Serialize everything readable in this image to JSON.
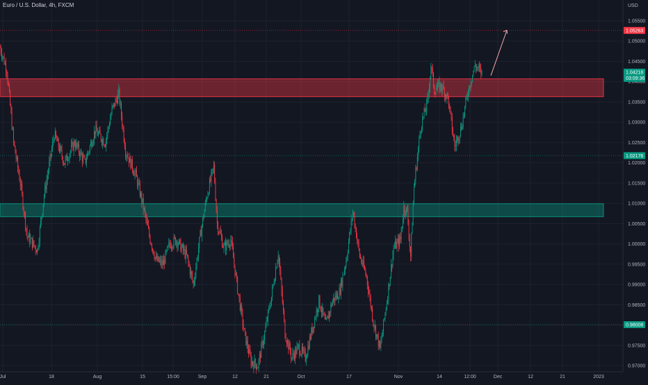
{
  "header": {
    "symbol_title": "Euro / U.S. Dollar, 4h, FXCM",
    "currency": "USD"
  },
  "price_axis": {
    "tick_labels": [
      "1.05500",
      "1.05000",
      "1.04500",
      "1.04000",
      "1.03500",
      "1.03000",
      "1.02500",
      "1.02000",
      "1.01500",
      "1.01000",
      "1.00500",
      "1.00000",
      "0.99500",
      "0.99000",
      "0.98500",
      "0.98000",
      "0.97500",
      "0.97000"
    ]
  },
  "time_axis": {
    "tick_labels": [
      "Jul",
      "18",
      "Aug",
      "15",
      "15:00",
      "Sep",
      "12",
      "21",
      "Oct",
      "17",
      "Nov",
      "14",
      "12:00",
      "Dec",
      "12",
      "21",
      "2023"
    ]
  },
  "price_badges": [
    {
      "label": "1.05263",
      "color": "#f23645"
    },
    {
      "label": "1.04218",
      "sublabel": "03:09:36",
      "color": "#089981"
    },
    {
      "label": "1.02176",
      "color": "#089981"
    },
    {
      "label": "0.98008",
      "color": "#089981"
    }
  ],
  "colors": {
    "background": "#131722",
    "up_candle": "#089981",
    "down_candle": "#f23645",
    "resistance_zone": "#f23645",
    "support_zone": "#089981",
    "grid": "#1e222d",
    "arrow": "#f7a9ab"
  },
  "chart_data": {
    "type": "candlestick",
    "title": "Euro / U.S. Dollar, 4h, FXCM",
    "ylim": [
      0.969,
      1.0575
    ],
    "grid": true,
    "price_path": [
      [
        0,
        1.0485
      ],
      [
        2,
        1.043
      ],
      [
        4,
        1.025
      ],
      [
        6,
        1.015
      ],
      [
        8,
        1.002
      ],
      [
        11,
        0.9985
      ],
      [
        13,
        1.012
      ],
      [
        16,
        1.027
      ],
      [
        19,
        1.02
      ],
      [
        22,
        1.025
      ],
      [
        25,
        1.02
      ],
      [
        28,
        1.028
      ],
      [
        31,
        1.025
      ],
      [
        33,
        1.033
      ],
      [
        35,
        1.037
      ],
      [
        37,
        1.023
      ],
      [
        40,
        1.017
      ],
      [
        42,
        1.01
      ],
      [
        44,
        1.002
      ],
      [
        46,
        0.996
      ],
      [
        48,
        0.995
      ],
      [
        50,
        1.0
      ],
      [
        52,
        1.001
      ],
      [
        55,
        0.997
      ],
      [
        57,
        0.99
      ],
      [
        58,
        0.996
      ],
      [
        59,
        1.002
      ],
      [
        61,
        1.012
      ],
      [
        63,
        1.019
      ],
      [
        64,
        1.005
      ],
      [
        66,
        0.999
      ],
      [
        68,
        1.001
      ],
      [
        70,
        0.989
      ],
      [
        72,
        0.978
      ],
      [
        74,
        0.971
      ],
      [
        76,
        0.97
      ],
      [
        78,
        0.978
      ],
      [
        80,
        0.987
      ],
      [
        82,
        0.998
      ],
      [
        84,
        0.978
      ],
      [
        86,
        0.972
      ],
      [
        88,
        0.9745
      ],
      [
        90,
        0.972
      ],
      [
        92,
        0.979
      ],
      [
        94,
        0.986
      ],
      [
        96,
        0.98
      ],
      [
        98,
        0.986
      ],
      [
        100,
        0.988
      ],
      [
        102,
        0.996
      ],
      [
        104,
        1.008
      ],
      [
        106,
        0.997
      ],
      [
        108,
        0.992
      ],
      [
        110,
        0.981
      ],
      [
        112,
        0.974
      ],
      [
        114,
        0.986
      ],
      [
        116,
        0.999
      ],
      [
        118,
        1.001
      ],
      [
        119,
        1.009
      ],
      [
        120,
        1.008
      ],
      [
        121,
        0.997
      ],
      [
        122,
        1.014
      ],
      [
        124,
        1.029
      ],
      [
        126,
        1.035
      ],
      [
        127,
        1.044
      ],
      [
        128,
        1.038
      ],
      [
        130,
        1.039
      ],
      [
        132,
        1.036
      ],
      [
        134,
        1.024
      ],
      [
        136,
        1.029
      ],
      [
        138,
        1.038
      ],
      [
        140,
        1.044
      ],
      [
        141,
        1.043
      ],
      [
        142,
        1.0421
      ]
    ],
    "zones": [
      {
        "name": "resistance",
        "from": 1.0363,
        "to": 1.0407
      },
      {
        "name": "support",
        "from": 1.0067,
        "to": 1.0099
      }
    ],
    "horizontal_lines": [
      1.05263,
      1.02176,
      0.98008
    ],
    "projection_arrow": {
      "from": [
        1.0415
      ],
      "to": [
        1.0525
      ]
    }
  }
}
